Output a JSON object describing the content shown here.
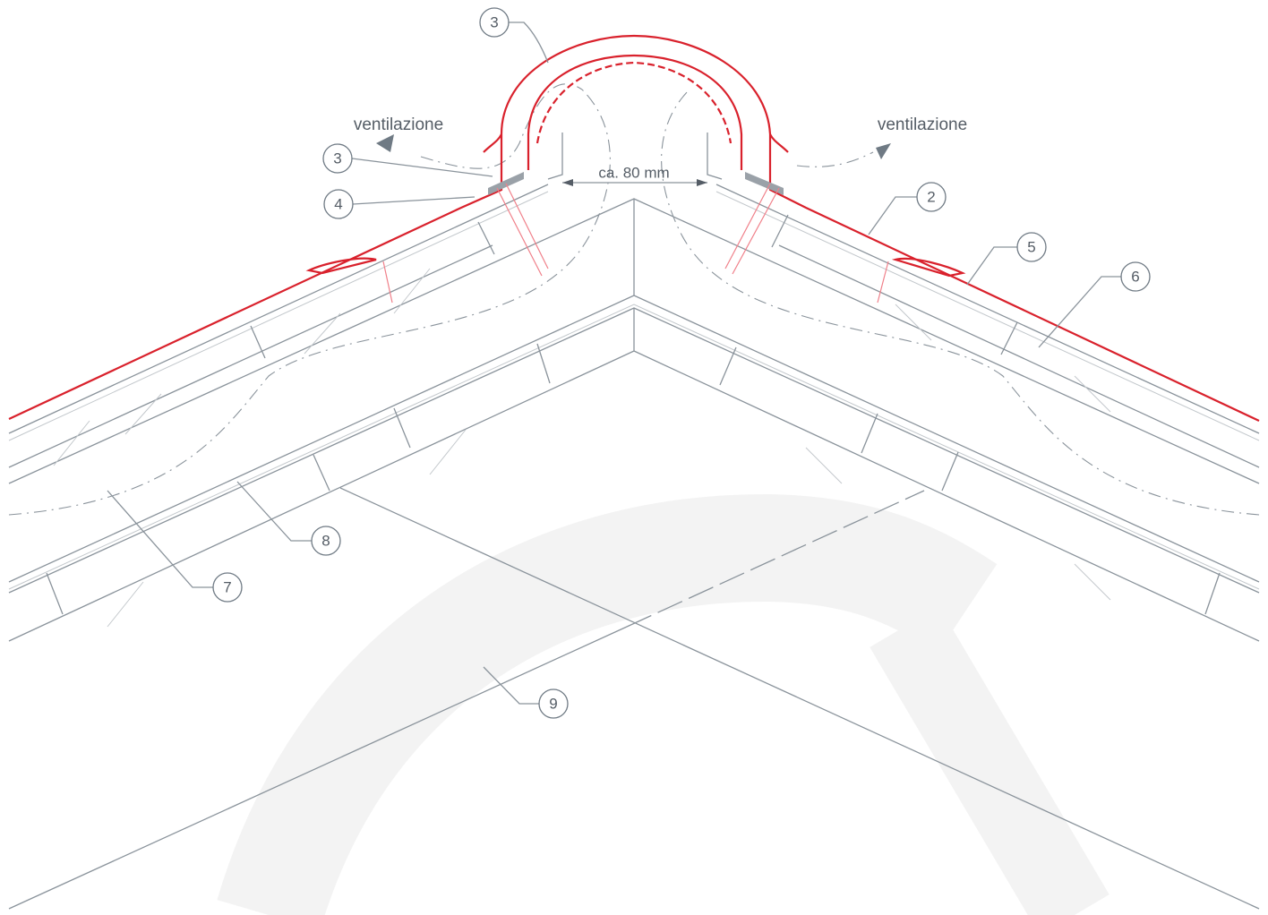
{
  "annotations": {
    "ventilation_left": "ventilazione",
    "ventilation_right": "ventilazione",
    "dimension": "ca. 80 mm"
  },
  "callouts": [
    "3",
    "3",
    "4",
    "2",
    "5",
    "6",
    "7",
    "8",
    "9"
  ]
}
